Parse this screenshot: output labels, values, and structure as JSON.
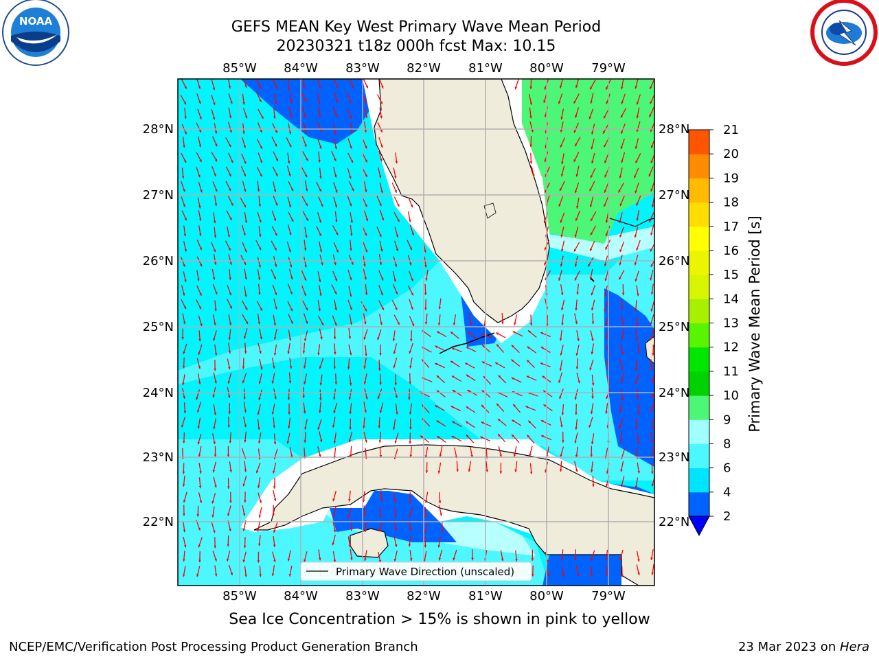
{
  "header": {
    "title_line1": "GEFS MEAN Key West Primary Wave Mean Period",
    "title_line2": "20230321 t18z 000h fcst   Max: 10.15"
  },
  "logos": {
    "left_name": "noaa-logo",
    "left_text": "NOAA",
    "right_name": "nws-logo"
  },
  "map": {
    "lon_labels": [
      "85°W",
      "84°W",
      "83°W",
      "82°W",
      "81°W",
      "80°W",
      "79°W"
    ],
    "lat_labels": [
      "28°N",
      "27°N",
      "26°N",
      "25°N",
      "24°N",
      "23°N",
      "22°N"
    ],
    "legend_label": "Primary Wave Direction (unscaled)",
    "arrow_color": "#ff0000",
    "land_color": "#efecdc"
  },
  "colorbar": {
    "label": "Primary Wave Mean Period [s]",
    "ticks": [
      "2",
      "4",
      "6",
      "8",
      "9",
      "10",
      "11",
      "12",
      "13",
      "14",
      "15",
      "16",
      "17",
      "18",
      "19",
      "20",
      "21"
    ],
    "colors": [
      "#0062ff",
      "#00e5ff",
      "#4cf7ff",
      "#a0ffff",
      "#4cf777",
      "#00d100",
      "#00e600",
      "#57f500",
      "#a8f000",
      "#d8f500",
      "#ecf500",
      "#ffff00",
      "#ffdd00",
      "#ffbb00",
      "#ff8c00",
      "#ff5500",
      "#ff2a00",
      "#ff0000"
    ],
    "under_color": "#0000ff"
  },
  "notes": {
    "ice": "Sea Ice Concentration > 15% is shown in pink to yellow"
  },
  "footer": {
    "left": "NCEP/EMC/Verification Post Processing Product Generation Branch",
    "right_prefix": "23 Mar 2023 on ",
    "right_host": "Hera"
  }
}
